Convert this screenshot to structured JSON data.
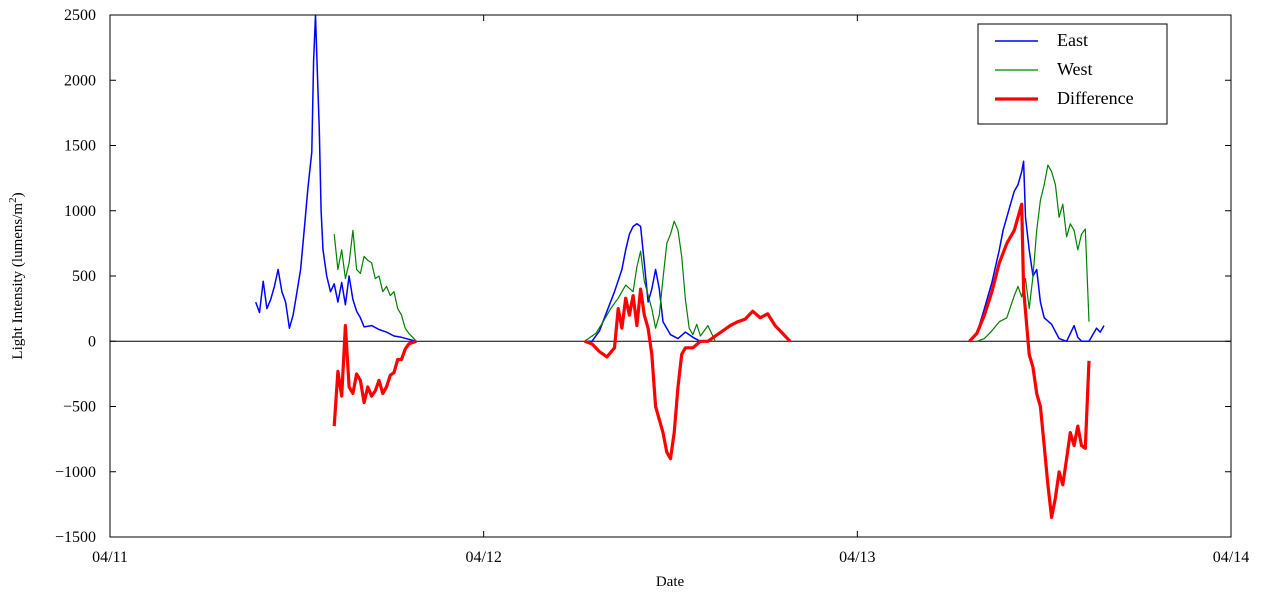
{
  "chart_data": {
    "type": "line",
    "xlabel": "Date",
    "ylabel": "Light Intensity (lumens/m",
    "ylabel_sup": "2",
    "ylabel_close": ")",
    "xlim": [
      0,
      3
    ],
    "ylim": [
      -1500,
      2500
    ],
    "x_ticks": [
      {
        "value": 0,
        "label": "04/11"
      },
      {
        "value": 1,
        "label": "04/12"
      },
      {
        "value": 2,
        "label": "04/13"
      },
      {
        "value": 3,
        "label": "04/14"
      }
    ],
    "y_ticks": [
      {
        "value": -1500,
        "label": "−1500"
      },
      {
        "value": -1000,
        "label": "−1000"
      },
      {
        "value": -500,
        "label": "−500"
      },
      {
        "value": 0,
        "label": "0"
      },
      {
        "value": 500,
        "label": "500"
      },
      {
        "value": 1000,
        "label": "1000"
      },
      {
        "value": 1500,
        "label": "1500"
      },
      {
        "value": 2000,
        "label": "2000"
      },
      {
        "value": 2500,
        "label": "2500"
      }
    ],
    "zero_line": true,
    "grid": false,
    "legend": "top-right",
    "series": [
      {
        "name": "East",
        "color": "#0000ff",
        "width": 1.5,
        "points": [
          [
            0.39,
            300
          ],
          [
            0.4,
            220
          ],
          [
            0.41,
            460
          ],
          [
            0.42,
            250
          ],
          [
            0.43,
            320
          ],
          [
            0.44,
            420
          ],
          [
            0.45,
            550
          ],
          [
            0.46,
            380
          ],
          [
            0.47,
            300
          ],
          [
            0.48,
            100
          ],
          [
            0.49,
            200
          ],
          [
            0.5,
            370
          ],
          [
            0.51,
            550
          ],
          [
            0.52,
            860
          ],
          [
            0.53,
            1180
          ],
          [
            0.54,
            1450
          ],
          [
            0.545,
            2150
          ],
          [
            0.55,
            2500
          ],
          [
            0.555,
            2050
          ],
          [
            0.56,
            1620
          ],
          [
            0.565,
            1000
          ],
          [
            0.57,
            700
          ],
          [
            0.58,
            500
          ],
          [
            0.59,
            380
          ],
          [
            0.6,
            440
          ],
          [
            0.61,
            300
          ],
          [
            0.62,
            450
          ],
          [
            0.63,
            280
          ],
          [
            0.64,
            500
          ],
          [
            0.65,
            320
          ],
          [
            0.66,
            230
          ],
          [
            0.67,
            180
          ],
          [
            0.68,
            110
          ],
          [
            0.7,
            120
          ],
          [
            0.72,
            90
          ],
          [
            0.74,
            70
          ],
          [
            0.76,
            40
          ],
          [
            0.78,
            30
          ],
          [
            0.8,
            15
          ],
          [
            0.82,
            0
          ],
          [
            1.27,
            0
          ],
          [
            1.29,
            0
          ],
          [
            1.31,
            80
          ],
          [
            1.33,
            230
          ],
          [
            1.35,
            380
          ],
          [
            1.37,
            550
          ],
          [
            1.38,
            700
          ],
          [
            1.39,
            820
          ],
          [
            1.4,
            880
          ],
          [
            1.41,
            900
          ],
          [
            1.42,
            880
          ],
          [
            1.43,
            600
          ],
          [
            1.44,
            300
          ],
          [
            1.45,
            400
          ],
          [
            1.46,
            550
          ],
          [
            1.47,
            400
          ],
          [
            1.48,
            150
          ],
          [
            1.5,
            50
          ],
          [
            1.52,
            20
          ],
          [
            1.54,
            70
          ],
          [
            1.56,
            30
          ],
          [
            1.58,
            0
          ],
          [
            2.3,
            0
          ],
          [
            2.32,
            60
          ],
          [
            2.34,
            250
          ],
          [
            2.36,
            450
          ],
          [
            2.38,
            700
          ],
          [
            2.39,
            850
          ],
          [
            2.4,
            950
          ],
          [
            2.41,
            1050
          ],
          [
            2.42,
            1150
          ],
          [
            2.43,
            1200
          ],
          [
            2.44,
            1300
          ],
          [
            2.445,
            1380
          ],
          [
            2.45,
            950
          ],
          [
            2.46,
            700
          ],
          [
            2.47,
            500
          ],
          [
            2.48,
            550
          ],
          [
            2.49,
            300
          ],
          [
            2.5,
            180
          ],
          [
            2.52,
            130
          ],
          [
            2.54,
            20
          ],
          [
            2.56,
            0
          ],
          [
            2.58,
            120
          ],
          [
            2.59,
            30
          ],
          [
            2.6,
            0
          ],
          [
            2.62,
            0
          ],
          [
            2.64,
            100
          ],
          [
            2.65,
            70
          ],
          [
            2.66,
            120
          ]
        ]
      },
      {
        "name": "West",
        "color": "#008000",
        "width": 1.2,
        "points": [
          [
            0.6,
            820
          ],
          [
            0.61,
            550
          ],
          [
            0.62,
            700
          ],
          [
            0.63,
            480
          ],
          [
            0.64,
            600
          ],
          [
            0.65,
            850
          ],
          [
            0.66,
            550
          ],
          [
            0.67,
            520
          ],
          [
            0.68,
            650
          ],
          [
            0.69,
            620
          ],
          [
            0.7,
            600
          ],
          [
            0.71,
            480
          ],
          [
            0.72,
            500
          ],
          [
            0.73,
            380
          ],
          [
            0.74,
            420
          ],
          [
            0.75,
            350
          ],
          [
            0.76,
            380
          ],
          [
            0.77,
            250
          ],
          [
            0.78,
            200
          ],
          [
            0.79,
            100
          ],
          [
            0.8,
            60
          ],
          [
            0.81,
            30
          ],
          [
            0.82,
            0
          ],
          [
            1.27,
            0
          ],
          [
            1.3,
            60
          ],
          [
            1.32,
            150
          ],
          [
            1.34,
            250
          ],
          [
            1.36,
            330
          ],
          [
            1.38,
            430
          ],
          [
            1.4,
            380
          ],
          [
            1.41,
            570
          ],
          [
            1.42,
            690
          ],
          [
            1.43,
            460
          ],
          [
            1.45,
            250
          ],
          [
            1.46,
            100
          ],
          [
            1.47,
            200
          ],
          [
            1.48,
            480
          ],
          [
            1.49,
            750
          ],
          [
            1.5,
            820
          ],
          [
            1.51,
            920
          ],
          [
            1.52,
            850
          ],
          [
            1.53,
            650
          ],
          [
            1.54,
            320
          ],
          [
            1.55,
            100
          ],
          [
            1.56,
            50
          ],
          [
            1.57,
            130
          ],
          [
            1.58,
            40
          ],
          [
            1.6,
            120
          ],
          [
            1.62,
            0
          ],
          [
            2.32,
            0
          ],
          [
            2.34,
            20
          ],
          [
            2.36,
            80
          ],
          [
            2.38,
            150
          ],
          [
            2.4,
            180
          ],
          [
            2.42,
            350
          ],
          [
            2.43,
            420
          ],
          [
            2.44,
            340
          ],
          [
            2.45,
            480
          ],
          [
            2.46,
            250
          ],
          [
            2.47,
            500
          ],
          [
            2.48,
            850
          ],
          [
            2.49,
            1080
          ],
          [
            2.5,
            1200
          ],
          [
            2.51,
            1350
          ],
          [
            2.52,
            1300
          ],
          [
            2.53,
            1200
          ],
          [
            2.54,
            950
          ],
          [
            2.55,
            1050
          ],
          [
            2.56,
            800
          ],
          [
            2.57,
            900
          ],
          [
            2.58,
            850
          ],
          [
            2.59,
            700
          ],
          [
            2.6,
            820
          ],
          [
            2.61,
            860
          ],
          [
            2.62,
            150
          ]
        ]
      },
      {
        "name": "Difference",
        "color": "#ff0000",
        "width": 3.2,
        "points": [
          [
            0.6,
            -650
          ],
          [
            0.61,
            -230
          ],
          [
            0.62,
            -420
          ],
          [
            0.63,
            120
          ],
          [
            0.64,
            -350
          ],
          [
            0.65,
            -400
          ],
          [
            0.66,
            -250
          ],
          [
            0.67,
            -300
          ],
          [
            0.68,
            -470
          ],
          [
            0.69,
            -350
          ],
          [
            0.7,
            -420
          ],
          [
            0.71,
            -380
          ],
          [
            0.72,
            -300
          ],
          [
            0.73,
            -400
          ],
          [
            0.74,
            -350
          ],
          [
            0.75,
            -260
          ],
          [
            0.76,
            -240
          ],
          [
            0.77,
            -140
          ],
          [
            0.78,
            -140
          ],
          [
            0.79,
            -60
          ],
          [
            0.8,
            -20
          ],
          [
            0.82,
            0
          ],
          [
            1.27,
            0
          ],
          [
            1.29,
            -20
          ],
          [
            1.31,
            -80
          ],
          [
            1.33,
            -120
          ],
          [
            1.35,
            -50
          ],
          [
            1.36,
            250
          ],
          [
            1.37,
            100
          ],
          [
            1.38,
            330
          ],
          [
            1.39,
            200
          ],
          [
            1.4,
            350
          ],
          [
            1.41,
            120
          ],
          [
            1.42,
            400
          ],
          [
            1.43,
            200
          ],
          [
            1.44,
            100
          ],
          [
            1.45,
            -100
          ],
          [
            1.46,
            -500
          ],
          [
            1.47,
            -600
          ],
          [
            1.48,
            -700
          ],
          [
            1.49,
            -850
          ],
          [
            1.5,
            -900
          ],
          [
            1.51,
            -700
          ],
          [
            1.52,
            -350
          ],
          [
            1.53,
            -100
          ],
          [
            1.54,
            -50
          ],
          [
            1.56,
            -50
          ],
          [
            1.58,
            0
          ],
          [
            1.6,
            0
          ],
          [
            1.62,
            40
          ],
          [
            1.64,
            80
          ],
          [
            1.66,
            120
          ],
          [
            1.68,
            150
          ],
          [
            1.7,
            170
          ],
          [
            1.72,
            230
          ],
          [
            1.74,
            180
          ],
          [
            1.76,
            210
          ],
          [
            1.78,
            120
          ],
          [
            1.8,
            60
          ],
          [
            1.82,
            0
          ],
          [
            2.3,
            0
          ],
          [
            2.32,
            60
          ],
          [
            2.34,
            200
          ],
          [
            2.36,
            380
          ],
          [
            2.38,
            600
          ],
          [
            2.4,
            750
          ],
          [
            2.42,
            850
          ],
          [
            2.44,
            1050
          ],
          [
            2.445,
            400
          ],
          [
            2.46,
            -100
          ],
          [
            2.47,
            -200
          ],
          [
            2.48,
            -400
          ],
          [
            2.49,
            -500
          ],
          [
            2.5,
            -800
          ],
          [
            2.51,
            -1100
          ],
          [
            2.52,
            -1350
          ],
          [
            2.53,
            -1200
          ],
          [
            2.54,
            -1000
          ],
          [
            2.55,
            -1100
          ],
          [
            2.56,
            -900
          ],
          [
            2.57,
            -700
          ],
          [
            2.58,
            -800
          ],
          [
            2.59,
            -650
          ],
          [
            2.6,
            -800
          ],
          [
            2.61,
            -820
          ],
          [
            2.62,
            -150
          ]
        ]
      }
    ]
  }
}
